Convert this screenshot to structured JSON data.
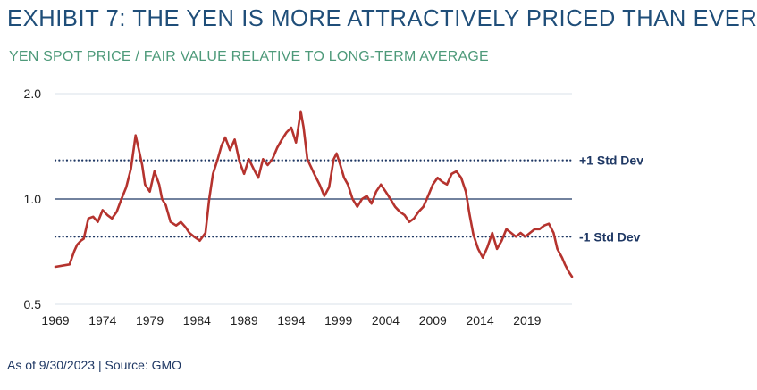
{
  "header": {
    "title": "EXHIBIT 7: THE YEN IS MORE ATTRACTIVELY PRICED THAN EVER",
    "subtitle": "YEN SPOT PRICE / FAIR VALUE RELATIVE TO LONG-TERM AVERAGE"
  },
  "footer": {
    "note": "As of 9/30/2023 | Source: GMO"
  },
  "colors": {
    "series": "#b5332e",
    "reference_line": "#1f3864",
    "grid": "#d9e1e8",
    "title": "#1f4e79",
    "subtitle": "#4e9a7a"
  },
  "chart_data": {
    "type": "line",
    "title": "EXHIBIT 7: THE YEN IS MORE ATTRACTIVELY PRICED THAN EVER",
    "subtitle": "YEN SPOT PRICE / FAIR VALUE RELATIVE TO LONG-TERM AVERAGE",
    "xlabel": "",
    "ylabel": "",
    "y_scale": "log",
    "ylim": [
      0.5,
      2.0
    ],
    "xlim": [
      1969,
      2023.75
    ],
    "x_ticks": [
      1969,
      1974,
      1979,
      1984,
      1989,
      1994,
      1999,
      2004,
      2009,
      2014,
      2019
    ],
    "y_ticks": [
      {
        "value": 0.5,
        "label": "0.5"
      },
      {
        "value": 1.0,
        "label": "1.0"
      },
      {
        "value": 2.0,
        "label": "2.0"
      }
    ],
    "grid": "horizontal at 0.5 and 2.0",
    "reference_lines": [
      {
        "value": 1.0,
        "label": "",
        "style": "solid"
      },
      {
        "value": 1.29,
        "label": "+1 Std Dev",
        "style": "dotted"
      },
      {
        "value": 0.78,
        "label": "-1 Std Dev",
        "style": "dotted"
      }
    ],
    "series": [
      {
        "x": [
          1969.0,
          1970.5,
          1971.0,
          1971.3,
          1971.7,
          1972.0,
          1972.5,
          1973.0,
          1973.5,
          1974.0,
          1974.5,
          1975.0,
          1975.5,
          1976.0,
          1976.5,
          1977.0,
          1977.5,
          1977.8,
          1978.2,
          1978.5,
          1979.0,
          1979.5,
          1980.0,
          1980.3,
          1980.7,
          1981.2,
          1981.8,
          1982.3,
          1982.8,
          1983.2,
          1983.7,
          1984.3,
          1984.9,
          1985.3,
          1985.7,
          1986.2,
          1986.6,
          1987.0,
          1987.5,
          1988.0,
          1988.5,
          1989.0,
          1989.5,
          1990.0,
          1990.5,
          1991.0,
          1991.5,
          1992.0,
          1992.5,
          1993.0,
          1993.5,
          1994.0,
          1994.5,
          1995.0,
          1995.3,
          1995.7,
          1996.0,
          1996.5,
          1997.0,
          1997.5,
          1998.0,
          1998.5,
          1998.8,
          1999.2,
          1999.6,
          2000.0,
          2000.5,
          2001.0,
          2001.5,
          2002.0,
          2002.5,
          2003.0,
          2003.5,
          2004.0,
          2004.5,
          2005.0,
          2005.5,
          2006.0,
          2006.5,
          2007.0,
          2007.5,
          2008.0,
          2008.5,
          2009.0,
          2009.5,
          2010.0,
          2010.5,
          2011.0,
          2011.5,
          2012.0,
          2012.5,
          2012.9,
          2013.3,
          2013.8,
          2014.3,
          2014.8,
          2015.3,
          2015.8,
          2016.3,
          2016.8,
          2017.3,
          2017.8,
          2018.3,
          2018.8,
          2019.3,
          2019.8,
          2020.3,
          2020.8,
          2021.3,
          2021.8,
          2022.2,
          2022.7,
          2023.0,
          2023.4,
          2023.75
        ],
        "values": [
          0.64,
          0.65,
          0.71,
          0.74,
          0.76,
          0.77,
          0.88,
          0.89,
          0.86,
          0.93,
          0.9,
          0.88,
          0.92,
          1.0,
          1.08,
          1.22,
          1.52,
          1.4,
          1.25,
          1.1,
          1.05,
          1.2,
          1.1,
          1.0,
          0.96,
          0.86,
          0.84,
          0.86,
          0.83,
          0.8,
          0.78,
          0.76,
          0.8,
          1.0,
          1.18,
          1.3,
          1.42,
          1.5,
          1.38,
          1.48,
          1.28,
          1.18,
          1.3,
          1.22,
          1.15,
          1.3,
          1.25,
          1.3,
          1.4,
          1.48,
          1.55,
          1.6,
          1.45,
          1.78,
          1.6,
          1.3,
          1.25,
          1.17,
          1.1,
          1.02,
          1.08,
          1.3,
          1.35,
          1.25,
          1.15,
          1.1,
          1.0,
          0.95,
          1.0,
          1.02,
          0.97,
          1.05,
          1.1,
          1.05,
          1.0,
          0.95,
          0.92,
          0.9,
          0.86,
          0.88,
          0.92,
          0.95,
          1.02,
          1.1,
          1.15,
          1.12,
          1.1,
          1.18,
          1.2,
          1.15,
          1.05,
          0.9,
          0.79,
          0.72,
          0.68,
          0.73,
          0.8,
          0.72,
          0.76,
          0.82,
          0.8,
          0.78,
          0.8,
          0.78,
          0.8,
          0.82,
          0.82,
          0.84,
          0.85,
          0.8,
          0.72,
          0.68,
          0.65,
          0.62,
          0.6
        ]
      }
    ]
  }
}
